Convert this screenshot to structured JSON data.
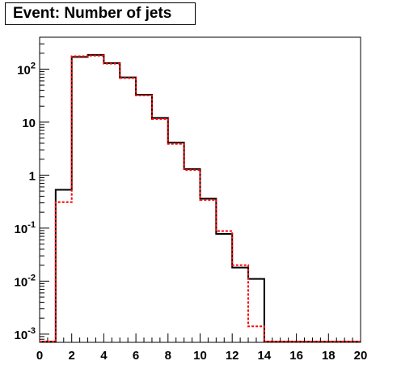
{
  "chart_data": {
    "type": "line",
    "title": "Event: Number of jets",
    "xlabel": "",
    "ylabel": "",
    "xlim": [
      0,
      20
    ],
    "ylim": [
      0.0007,
      400
    ],
    "yscale": "log",
    "grid": false,
    "legend": "none",
    "x_ticks": [
      "0",
      "2",
      "4",
      "6",
      "8",
      "10",
      "12",
      "14",
      "16",
      "18",
      "20"
    ],
    "y_ticks": [
      {
        "value": 0.001,
        "base": "10",
        "exp": "-3"
      },
      {
        "value": 0.01,
        "base": "10",
        "exp": "-2"
      },
      {
        "value": 0.1,
        "base": "10",
        "exp": "-1"
      },
      {
        "value": 1,
        "label": "1"
      },
      {
        "value": 10,
        "label": "10"
      },
      {
        "value": 100,
        "base": "10",
        "exp": "2"
      }
    ],
    "bin_edges": [
      0,
      1,
      2,
      3,
      4,
      5,
      6,
      7,
      8,
      9,
      10,
      11,
      12,
      13,
      14,
      15,
      16,
      17,
      18,
      19,
      20
    ],
    "series": [
      {
        "color": "#000000",
        "style": "solid",
        "values": [
          0,
          0.53,
          170,
          185,
          130,
          70,
          33,
          12,
          4.1,
          1.3,
          0.36,
          0.078,
          0.018,
          0.011,
          0,
          0,
          0,
          0,
          0,
          0
        ]
      },
      {
        "color": "#ff0000",
        "style": "dashed",
        "values": [
          0,
          0.31,
          175,
          180,
          127,
          68,
          32,
          11.5,
          3.9,
          1.25,
          0.34,
          0.088,
          0.02,
          0.0014,
          0,
          0,
          0,
          0,
          0,
          0
        ]
      }
    ]
  }
}
